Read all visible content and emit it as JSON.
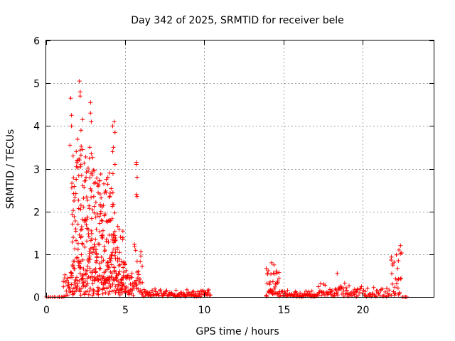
{
  "chart_data": {
    "type": "scatter",
    "title": "Day 342 of 2025, SRMTID for receiver bele",
    "xlabel": "GPS time / hours",
    "ylabel": "SRMTID / TECUs",
    "xlim": [
      0,
      24.5
    ],
    "ylim": [
      0,
      6
    ],
    "x_ticks": [
      "0",
      "5",
      "10",
      "15",
      "20"
    ],
    "y_ticks": [
      "0",
      "1",
      "2",
      "3",
      "4",
      "5",
      "6"
    ],
    "grid": true,
    "marker": "plus",
    "color": "#ff0000",
    "series": [
      {
        "name": "SRMTID",
        "segments": [
          {
            "range": [
              0.0,
              1.1
            ],
            "base": 0.0,
            "amp": 0.0,
            "dense": 0.12
          },
          {
            "range": [
              1.1,
              1.6
            ],
            "base": 0.15,
            "amp": 0.45,
            "dense": 0.05
          },
          {
            "range": [
              1.6,
              2.2
            ],
            "base": 0.4,
            "amp": 3.4,
            "dense": 0.03
          },
          {
            "range": [
              2.2,
              3.3
            ],
            "base": 0.5,
            "amp": 3.0,
            "dense": 0.03
          },
          {
            "range": [
              3.3,
              4.4
            ],
            "base": 0.5,
            "amp": 2.6,
            "dense": 0.03
          },
          {
            "range": [
              4.4,
              5.0
            ],
            "base": 0.3,
            "amp": 1.4,
            "dense": 0.04
          },
          {
            "range": [
              5.0,
              5.6
            ],
            "base": 0.2,
            "amp": 0.6,
            "dense": 0.04
          },
          {
            "range": [
              5.6,
              6.1
            ],
            "base": 0.3,
            "amp": 1.0,
            "dense": 0.04
          },
          {
            "range": [
              6.1,
              10.4
            ],
            "base": 0.05,
            "amp": 0.15,
            "dense": 0.04
          },
          {
            "range": [
              13.9,
              14.7
            ],
            "base": 0.1,
            "amp": 0.6,
            "dense": 0.04
          },
          {
            "range": [
              14.7,
              17.2
            ],
            "base": 0.03,
            "amp": 0.15,
            "dense": 0.04
          },
          {
            "range": [
              17.2,
              19.6
            ],
            "base": 0.05,
            "amp": 0.3,
            "dense": 0.04
          },
          {
            "range": [
              19.6,
              21.8
            ],
            "base": 0.05,
            "amp": 0.2,
            "dense": 0.05
          },
          {
            "range": [
              21.8,
              22.5
            ],
            "base": 0.1,
            "amp": 1.0,
            "dense": 0.05
          },
          {
            "range": [
              22.5,
              22.9
            ],
            "base": 0.0,
            "amp": 0.0,
            "dense": 0.1
          }
        ],
        "peaks": [
          [
            2.1,
            5.05
          ],
          [
            2.15,
            4.8
          ],
          [
            2.15,
            4.7
          ],
          [
            1.55,
            4.65
          ],
          [
            2.8,
            4.55
          ],
          [
            2.8,
            4.3
          ],
          [
            1.6,
            4.25
          ],
          [
            2.3,
            4.15
          ],
          [
            2.85,
            4.1
          ],
          [
            1.6,
            4.0
          ],
          [
            4.3,
            4.1
          ],
          [
            4.2,
            4.0
          ],
          [
            2.2,
            3.9
          ],
          [
            4.35,
            3.85
          ],
          [
            1.5,
            3.55
          ],
          [
            2.75,
            3.5
          ],
          [
            2.3,
            3.45
          ],
          [
            4.25,
            3.5
          ],
          [
            4.2,
            3.4
          ],
          [
            1.9,
            3.4
          ],
          [
            2.85,
            3.35
          ],
          [
            1.7,
            3.3
          ],
          [
            5.7,
            3.15
          ],
          [
            5.7,
            3.1
          ],
          [
            4.35,
            3.1
          ],
          [
            5.75,
            2.8
          ],
          [
            5.7,
            2.4
          ],
          [
            5.75,
            2.35
          ],
          [
            4.0,
            2.9
          ],
          [
            3.9,
            2.8
          ],
          [
            22.4,
            1.2
          ],
          [
            22.3,
            1.1
          ],
          [
            14.25,
            0.8
          ],
          [
            14.4,
            0.75
          ],
          [
            18.4,
            0.55
          ]
        ]
      }
    ]
  }
}
